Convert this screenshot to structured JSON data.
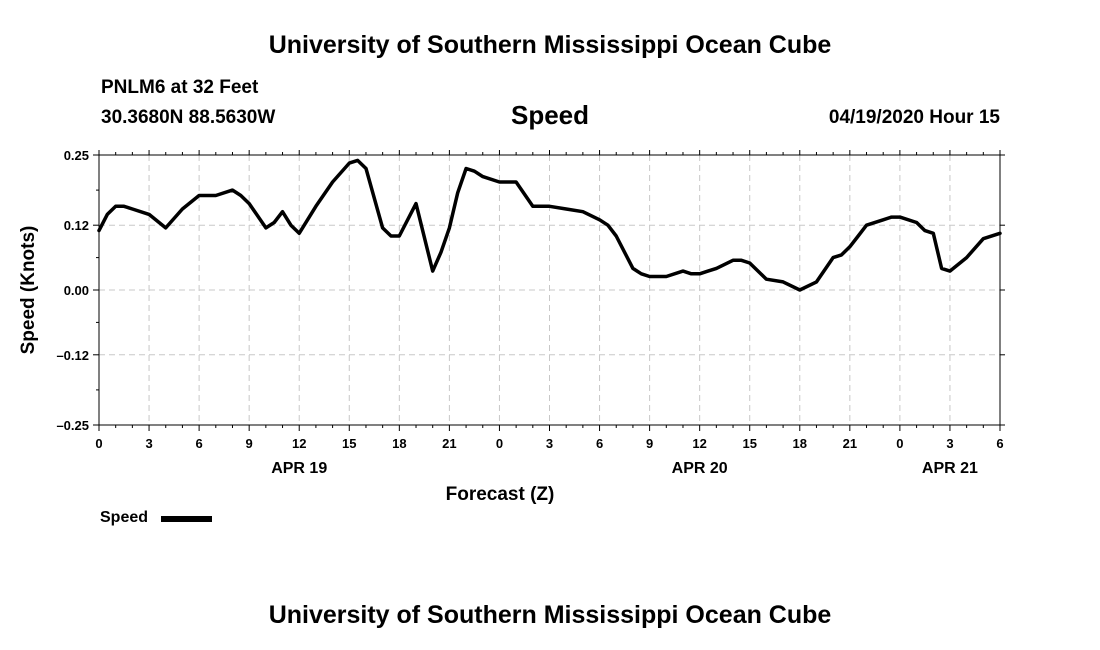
{
  "header": {
    "title_top": "University of Southern Mississippi Ocean Cube",
    "station": "PNLM6 at 32 Feet",
    "coords": "30.3680N 88.5630W",
    "chart_title": "Speed",
    "datetime": "04/19/2020 Hour 15",
    "title_bottom": "University of Southern Mississippi Ocean Cube"
  },
  "legend": {
    "label": "Speed"
  },
  "chart_data": {
    "type": "line",
    "title": "Speed",
    "xlabel": "Forecast (Z)",
    "ylabel": "Speed (Knots)",
    "ylim": [
      -0.25,
      0.25
    ],
    "y_ticks": [
      0.25,
      0.12,
      0.0,
      -0.12,
      -0.25
    ],
    "y_tick_labels": [
      "0.25",
      "0.12",
      "0.00",
      "–0.12",
      "–0.25"
    ],
    "xlim": [
      0,
      54
    ],
    "x_ticks": [
      0,
      3,
      6,
      9,
      12,
      15,
      18,
      21,
      24,
      27,
      30,
      33,
      36,
      39,
      42,
      45,
      48,
      51,
      54
    ],
    "x_tick_labels": [
      "0",
      "3",
      "6",
      "9",
      "12",
      "15",
      "18",
      "21",
      "0",
      "3",
      "6",
      "9",
      "12",
      "15",
      "18",
      "21",
      "0",
      "3",
      "6"
    ],
    "date_labels": [
      {
        "x": 12,
        "label": "APR 19"
      },
      {
        "x": 36,
        "label": "APR 20"
      },
      {
        "x": 51,
        "label": "APR 21"
      }
    ],
    "grid": true,
    "legend_position": "bottom-left",
    "series": [
      {
        "name": "Speed",
        "color": "#000000",
        "x": [
          0,
          0.5,
          1,
          1.5,
          2,
          3,
          4,
          5,
          6,
          6.5,
          7,
          8,
          8.5,
          9,
          10,
          10.5,
          11,
          11.5,
          12,
          13,
          14,
          15,
          15.5,
          16,
          17,
          17.5,
          18,
          19,
          20,
          20.5,
          21,
          21.5,
          22,
          22.5,
          23,
          24,
          25,
          26,
          27,
          28,
          29,
          30,
          30.5,
          31,
          32,
          32.5,
          33,
          34,
          35,
          35.5,
          36,
          36.5,
          37,
          38,
          38.5,
          39,
          40,
          41,
          42,
          43,
          44,
          44.5,
          45,
          45.5,
          46,
          47,
          47.5,
          48,
          49,
          49.5,
          50,
          50.5,
          51,
          52,
          53,
          54
        ],
        "y": [
          0.11,
          0.14,
          0.155,
          0.155,
          0.15,
          0.14,
          0.115,
          0.15,
          0.175,
          0.175,
          0.175,
          0.185,
          0.175,
          0.16,
          0.115,
          0.125,
          0.145,
          0.12,
          0.105,
          0.155,
          0.2,
          0.235,
          0.24,
          0.225,
          0.115,
          0.1,
          0.1,
          0.16,
          0.035,
          0.07,
          0.115,
          0.18,
          0.225,
          0.22,
          0.21,
          0.2,
          0.2,
          0.155,
          0.155,
          0.15,
          0.145,
          0.13,
          0.12,
          0.1,
          0.04,
          0.03,
          0.025,
          0.025,
          0.035,
          0.03,
          0.03,
          0.035,
          0.04,
          0.055,
          0.055,
          0.05,
          0.02,
          0.015,
          0,
          0.015,
          0.06,
          0.065,
          0.08,
          0.1,
          0.12,
          0.13,
          0.135,
          0.135,
          0.125,
          0.11,
          0.105,
          0.04,
          0.035,
          0.06,
          0.095,
          0.105
        ]
      }
    ]
  }
}
